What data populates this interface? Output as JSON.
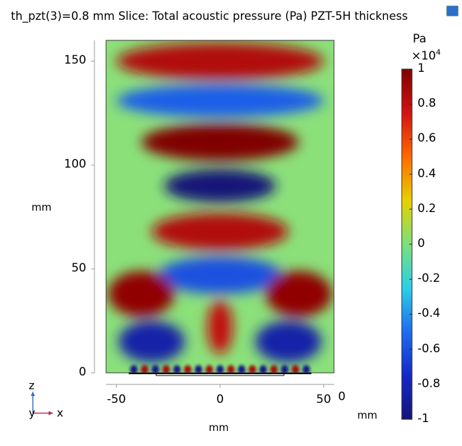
{
  "title": "th_pzt(3)=0.8 mm  Slice: Total acoustic pressure (Pa) PZT-5H thickness",
  "icons": [
    "window-restore-icon"
  ],
  "chart_data": {
    "type": "heatmap",
    "title": "th_pzt(3)=0.8 mm  Slice: Total acoustic pressure (Pa) PZT-5H thickness",
    "xlabel": "mm",
    "ylabel": "mm",
    "x_ticks": [
      "-50",
      "0",
      "50"
    ],
    "y_ticks": [
      "0",
      "50",
      "100",
      "150"
    ],
    "xlim": [
      -55,
      55
    ],
    "ylim": [
      0,
      160
    ],
    "colorbar": {
      "unit": "Pa",
      "multiplier_text": "×10",
      "multiplier_exp": "4",
      "ticks": [
        "1",
        "0.8",
        "0.6",
        "0.4",
        "0.2",
        "0",
        "-0.2",
        "-0.4",
        "-0.6",
        "-0.8",
        "-1"
      ],
      "range": [
        -1,
        1
      ],
      "colormap": "rainbow"
    },
    "field_features": [
      {
        "x": 0,
        "y": 150,
        "value": 0.85
      },
      {
        "x": 0,
        "y": 131,
        "value": -0.55
      },
      {
        "x": 0,
        "y": 111,
        "value": 1.0
      },
      {
        "x": 0,
        "y": 90,
        "value": -1.0
      },
      {
        "x": 0,
        "y": 68,
        "value": 0.85
      },
      {
        "x": 0,
        "y": 47,
        "value": -0.6
      },
      {
        "x": -38,
        "y": 38,
        "value": 0.95
      },
      {
        "x": 38,
        "y": 38,
        "value": 0.95
      },
      {
        "x": -33,
        "y": 15,
        "value": -0.85
      },
      {
        "x": 33,
        "y": 15,
        "value": -0.85
      },
      {
        "x": 0,
        "y": 22,
        "value": 0.8
      }
    ],
    "secondary_axis": {
      "label": "mm",
      "tick": "0"
    }
  },
  "triad": {
    "z": "z",
    "y": "y",
    "x": "x"
  }
}
